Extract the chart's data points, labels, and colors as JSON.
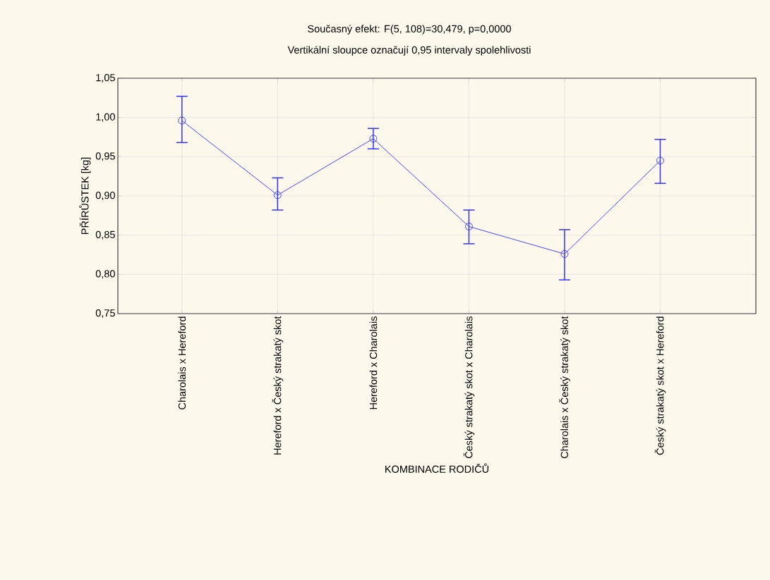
{
  "chart_data": {
    "type": "line",
    "title": "Současný efekt: F(5, 108)=30,479, p=0,0000",
    "subtitle": "Vertikální sloupce označují 0,95 intervaly spolehlivosti",
    "xlabel": "KOMBINACE RODIČŮ",
    "ylabel": "PŘÍRŮSTEK [kg]",
    "categories": [
      "Charolais x Hereford",
      "Hereford x Český strakatý skot",
      "Hereford x Charolais",
      "Český strakatý skot x Charolais",
      "Charolais x Český strakatý skot",
      "Český strakatý skot x Hereford"
    ],
    "values": [
      0.996,
      0.901,
      0.973,
      0.861,
      0.826,
      0.945
    ],
    "errors": [
      [
        0.968,
        1.027
      ],
      [
        0.882,
        0.923
      ],
      [
        0.96,
        0.986
      ],
      [
        0.839,
        0.882
      ],
      [
        0.793,
        0.857
      ],
      [
        0.916,
        0.972
      ]
    ],
    "color": "#3333ff",
    "marker": "circle",
    "line_style": "solid",
    "grid": true,
    "ylim": [
      0.75,
      1.05
    ],
    "yticks": [
      {
        "value": 0.75,
        "label": "0,75"
      },
      {
        "value": 0.8,
        "label": "0,80"
      },
      {
        "value": 0.85,
        "label": "0,85"
      },
      {
        "value": 0.9,
        "label": "0,90"
      },
      {
        "value": 0.95,
        "label": "0,95"
      },
      {
        "value": 1.0,
        "label": "1,00"
      },
      {
        "value": 1.05,
        "label": "1,05"
      }
    ]
  }
}
